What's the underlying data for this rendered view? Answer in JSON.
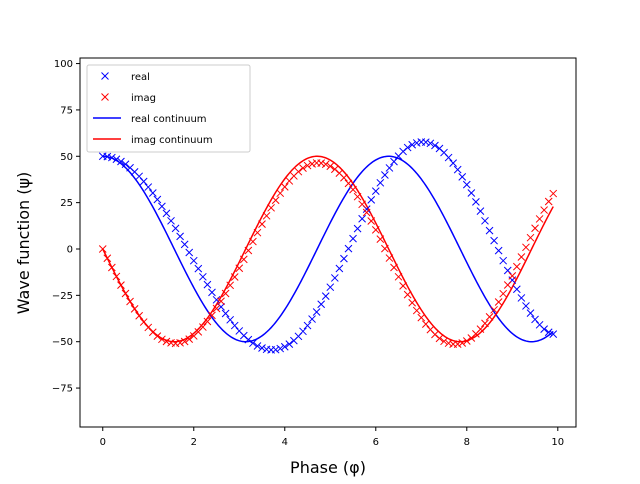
{
  "chart_data": {
    "type": "line",
    "title": "",
    "xlabel": "Phase (φ)",
    "ylabel": "Wave function (ψ)",
    "xlim": [
      -0.5,
      10.4
    ],
    "ylim": [
      -96,
      103
    ],
    "xticks": [
      0,
      2,
      4,
      6,
      8,
      10
    ],
    "yticks": [
      -75,
      -50,
      -25,
      0,
      25,
      50,
      75,
      100
    ],
    "grid": false,
    "legend_position": "top-left",
    "x": [
      0.0,
      0.1,
      0.2,
      0.3,
      0.4,
      0.5,
      0.6,
      0.7,
      0.8,
      0.9,
      1.0,
      1.1,
      1.2,
      1.3,
      1.4,
      1.5,
      1.6,
      1.7,
      1.8,
      1.9,
      2.0,
      2.1,
      2.2,
      2.3,
      2.4,
      2.5,
      2.6,
      2.7,
      2.8,
      2.9,
      3.0,
      3.1,
      3.2,
      3.3,
      3.4,
      3.5,
      3.6,
      3.7,
      3.8,
      3.9,
      4.0,
      4.1,
      4.2,
      4.3,
      4.4,
      4.5,
      4.6,
      4.7,
      4.8,
      4.9,
      5.0,
      5.1,
      5.2,
      5.3,
      5.4,
      5.5,
      5.6,
      5.7,
      5.8,
      5.9,
      6.0,
      6.1,
      6.2,
      6.3,
      6.4,
      6.5,
      6.6,
      6.7,
      6.8,
      6.9,
      7.0,
      7.1,
      7.2,
      7.3,
      7.4,
      7.5,
      7.6,
      7.7,
      7.8,
      7.9,
      8.0,
      8.1,
      8.2,
      8.3,
      8.4,
      8.5,
      8.6,
      8.7,
      8.8,
      8.9,
      9.0,
      9.1,
      9.2,
      9.3,
      9.4,
      9.5,
      9.6,
      9.7,
      9.8,
      9.9
    ],
    "series": [
      {
        "name": "real",
        "kind": "markers",
        "marker": "x",
        "color": "#0000ff",
        "values": [
          50.0,
          49.8,
          49.3,
          48.4,
          47.2,
          45.7,
          43.8,
          41.6,
          39.2,
          36.4,
          33.4,
          30.2,
          26.7,
          23.0,
          19.2,
          15.2,
          11.1,
          6.8,
          2.5,
          -1.9,
          -6.3,
          -10.6,
          -15.0,
          -19.2,
          -23.4,
          -27.4,
          -31.2,
          -34.8,
          -38.2,
          -41.3,
          -44.2,
          -46.7,
          -48.9,
          -50.8,
          -52.3,
          -53.4,
          -54.1,
          -54.4,
          -54.3,
          -53.7,
          -52.7,
          -51.3,
          -49.4,
          -47.1,
          -44.4,
          -41.3,
          -37.8,
          -34.0,
          -29.8,
          -25.4,
          -20.6,
          -15.6,
          -10.5,
          -5.2,
          0.2,
          5.6,
          11.0,
          16.3,
          21.5,
          26.5,
          31.2,
          35.7,
          39.9,
          43.7,
          47.1,
          50.1,
          52.6,
          54.7,
          56.2,
          57.2,
          57.7,
          57.6,
          57.0,
          55.8,
          54.2,
          52.0,
          49.3,
          46.3,
          42.8,
          38.9,
          34.7,
          30.2,
          25.4,
          20.4,
          15.2,
          9.9,
          4.5,
          -0.9,
          -6.3,
          -11.6,
          -16.8,
          -21.7,
          -26.4,
          -30.7,
          -34.6,
          -38.0,
          -40.9,
          -43.2,
          -44.9,
          -45.9
        ]
      },
      {
        "name": "imag",
        "kind": "markers",
        "marker": "x",
        "color": "#ff0000",
        "values": [
          0.0,
          -5.0,
          -10.0,
          -14.8,
          -19.5,
          -24.0,
          -28.3,
          -32.3,
          -36.0,
          -39.4,
          -42.3,
          -44.9,
          -47.0,
          -48.7,
          -49.9,
          -50.6,
          -50.9,
          -50.6,
          -49.9,
          -48.6,
          -46.9,
          -44.7,
          -42.1,
          -39.1,
          -35.8,
          -32.1,
          -28.2,
          -24.0,
          -19.6,
          -15.1,
          -10.4,
          -5.6,
          -0.8,
          4.0,
          8.8,
          13.4,
          17.9,
          22.2,
          26.3,
          30.1,
          33.5,
          36.7,
          39.4,
          41.7,
          43.6,
          45.0,
          45.9,
          46.4,
          46.3,
          45.7,
          44.6,
          43.0,
          40.9,
          38.4,
          35.4,
          32.0,
          28.2,
          24.1,
          19.7,
          15.1,
          10.3,
          5.3,
          0.2,
          -4.9,
          -10.0,
          -15.0,
          -19.9,
          -24.6,
          -29.0,
          -33.2,
          -37.0,
          -40.5,
          -43.5,
          -46.1,
          -48.2,
          -49.8,
          -50.8,
          -51.3,
          -51.3,
          -50.7,
          -49.6,
          -48.0,
          -45.8,
          -43.2,
          -40.1,
          -36.6,
          -32.8,
          -28.6,
          -24.1,
          -19.4,
          -14.5,
          -9.5,
          -4.3,
          0.9,
          6.1,
          11.2,
          16.2,
          21.0,
          25.6,
          29.9
        ]
      }
    ],
    "continuum": [
      {
        "name": "real continuum",
        "kind": "line",
        "color": "#0000ff",
        "function": "50*cos(x)"
      },
      {
        "name": "imag continuum",
        "kind": "line",
        "color": "#ff0000",
        "function": "-50*sin(x)"
      }
    ],
    "legend": [
      "real",
      "imag",
      "real continuum",
      "imag continuum"
    ]
  }
}
